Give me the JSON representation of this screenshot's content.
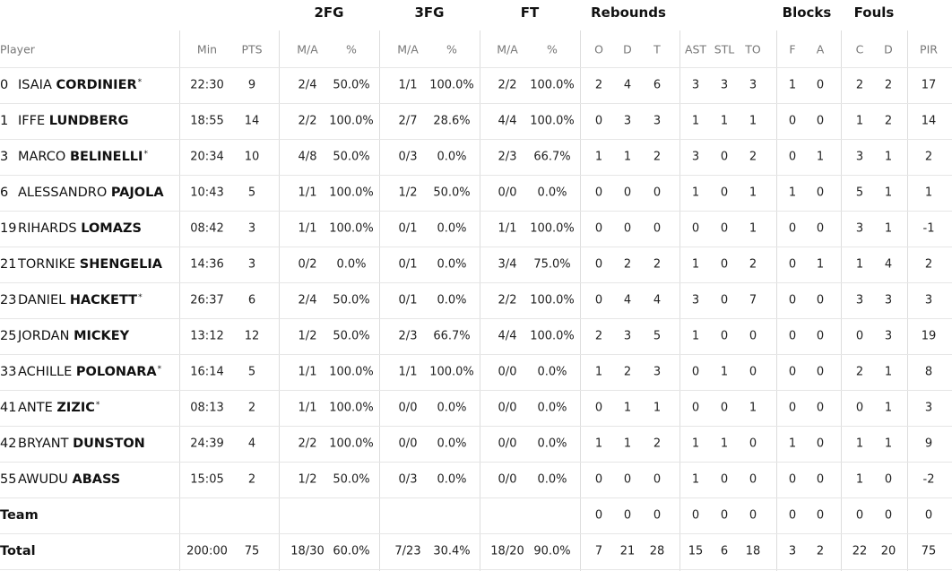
{
  "header": {
    "groups": [
      "2FG",
      "3FG",
      "FT",
      "Rebounds",
      "Blocks",
      "Fouls"
    ],
    "columns": [
      "Player",
      "Min",
      "PTS",
      "M/A",
      "%",
      "M/A",
      "%",
      "M/A",
      "%",
      "O",
      "D",
      "T",
      "AST",
      "STL",
      "TO",
      "F",
      "A",
      "C",
      "D",
      "PIR"
    ]
  },
  "players": [
    {
      "number": "0",
      "first": "ISAIA",
      "last": "CORDINIER",
      "mark": "*",
      "stats": [
        "22:30",
        "9",
        "2/4",
        "50.0%",
        "1/1",
        "100.0%",
        "2/2",
        "100.0%",
        "2",
        "4",
        "6",
        "3",
        "3",
        "3",
        "1",
        "0",
        "2",
        "2",
        "17"
      ]
    },
    {
      "number": "1",
      "first": "IFFE",
      "last": "LUNDBERG",
      "stats": [
        "18:55",
        "14",
        "2/2",
        "100.0%",
        "2/7",
        "28.6%",
        "4/4",
        "100.0%",
        "0",
        "3",
        "3",
        "1",
        "1",
        "1",
        "0",
        "0",
        "1",
        "2",
        "14"
      ]
    },
    {
      "number": "3",
      "first": "MARCO",
      "last": "BELINELLI",
      "mark": "*",
      "stats": [
        "20:34",
        "10",
        "4/8",
        "50.0%",
        "0/3",
        "0.0%",
        "2/3",
        "66.7%",
        "1",
        "1",
        "2",
        "3",
        "0",
        "2",
        "0",
        "1",
        "3",
        "1",
        "2"
      ]
    },
    {
      "number": "6",
      "first": "ALESSANDRO",
      "last": "PAJOLA",
      "stats": [
        "10:43",
        "5",
        "1/1",
        "100.0%",
        "1/2",
        "50.0%",
        "0/0",
        "0.0%",
        "0",
        "0",
        "0",
        "1",
        "0",
        "1",
        "1",
        "0",
        "5",
        "1",
        "1"
      ]
    },
    {
      "number": "19",
      "first": "RIHARDS",
      "last": "LOMAZS",
      "stats": [
        "08:42",
        "3",
        "1/1",
        "100.0%",
        "0/1",
        "0.0%",
        "1/1",
        "100.0%",
        "0",
        "0",
        "0",
        "0",
        "0",
        "1",
        "0",
        "0",
        "3",
        "1",
        "-1"
      ]
    },
    {
      "number": "21",
      "first": "TORNIKE",
      "last": "SHENGELIA",
      "stats": [
        "14:36",
        "3",
        "0/2",
        "0.0%",
        "0/1",
        "0.0%",
        "3/4",
        "75.0%",
        "0",
        "2",
        "2",
        "1",
        "0",
        "2",
        "0",
        "1",
        "1",
        "4",
        "2"
      ]
    },
    {
      "number": "23",
      "first": "DANIEL",
      "last": "HACKETT",
      "mark": "*",
      "stats": [
        "26:37",
        "6",
        "2/4",
        "50.0%",
        "0/1",
        "0.0%",
        "2/2",
        "100.0%",
        "0",
        "4",
        "4",
        "3",
        "0",
        "7",
        "0",
        "0",
        "3",
        "3",
        "3"
      ]
    },
    {
      "number": "25",
      "first": "JORDAN",
      "last": "MICKEY",
      "stats": [
        "13:12",
        "12",
        "1/2",
        "50.0%",
        "2/3",
        "66.7%",
        "4/4",
        "100.0%",
        "2",
        "3",
        "5",
        "1",
        "0",
        "0",
        "0",
        "0",
        "0",
        "3",
        "19"
      ]
    },
    {
      "number": "33",
      "first": "ACHILLE",
      "last": "POLONARA",
      "mark": "*",
      "stats": [
        "16:14",
        "5",
        "1/1",
        "100.0%",
        "1/1",
        "100.0%",
        "0/0",
        "0.0%",
        "1",
        "2",
        "3",
        "0",
        "1",
        "0",
        "0",
        "0",
        "2",
        "1",
        "8"
      ]
    },
    {
      "number": "41",
      "first": "ANTE",
      "last": "ZIZIC",
      "mark": "*",
      "stats": [
        "08:13",
        "2",
        "1/1",
        "100.0%",
        "0/0",
        "0.0%",
        "0/0",
        "0.0%",
        "0",
        "1",
        "1",
        "0",
        "0",
        "1",
        "0",
        "0",
        "0",
        "1",
        "3"
      ]
    },
    {
      "number": "42",
      "first": "BRYANT",
      "last": "DUNSTON",
      "stats": [
        "24:39",
        "4",
        "2/2",
        "100.0%",
        "0/0",
        "0.0%",
        "0/0",
        "0.0%",
        "1",
        "1",
        "2",
        "1",
        "1",
        "0",
        "1",
        "0",
        "1",
        "1",
        "9"
      ]
    },
    {
      "number": "55",
      "first": "AWUDU",
      "last": "ABASS",
      "stats": [
        "15:05",
        "2",
        "1/2",
        "50.0%",
        "0/3",
        "0.0%",
        "0/0",
        "0.0%",
        "0",
        "0",
        "0",
        "1",
        "0",
        "0",
        "0",
        "0",
        "1",
        "0",
        "-2"
      ]
    }
  ],
  "team": {
    "label": "Team",
    "stats": [
      "0",
      "0",
      "0",
      "0",
      "0",
      "0",
      "0",
      "0",
      "0",
      "0",
      "0"
    ]
  },
  "total": {
    "label": "Total",
    "stats": [
      "200:00",
      "75",
      "18/30",
      "60.0%",
      "7/23",
      "30.4%",
      "18/20",
      "90.0%",
      "7",
      "21",
      "28",
      "15",
      "6",
      "18",
      "3",
      "2",
      "22",
      "20",
      "75"
    ]
  }
}
